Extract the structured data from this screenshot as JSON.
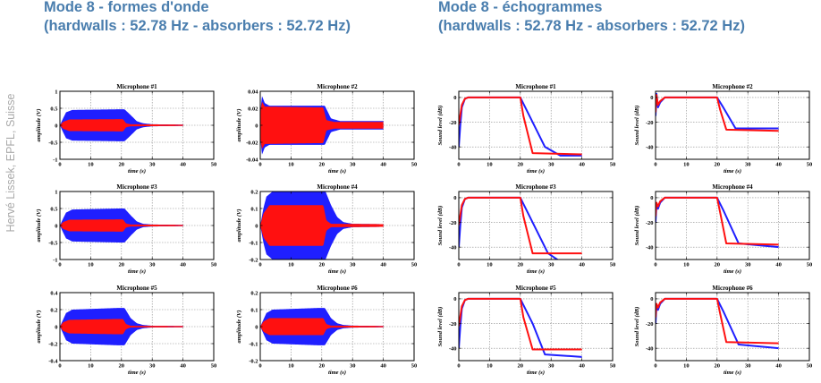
{
  "headings": {
    "left": {
      "line1": "Mode 8 - formes d'onde",
      "line2": "(hardwalls : 52.78 Hz - absorbers : 52.72 Hz)"
    },
    "right": {
      "line1": "Mode 8 - échogrammes",
      "line2": "(hardwalls : 52.78 Hz - absorbers : 52.72 Hz)"
    }
  },
  "credit": "Hervé Lissek, EPFL, Suisse",
  "colors": {
    "hardwalls": "#1f1fff",
    "absorbers": "#ff1010",
    "grid": "#8a8a8a"
  },
  "chart_data": [
    {
      "type": "area",
      "title": "Microphone #1",
      "xlabel": "time (s)",
      "ylabel": "amplitude (V)",
      "xlim": [
        0,
        50
      ],
      "ylim": [
        -1,
        1
      ],
      "xticks": [
        "0",
        "10",
        "20",
        "30",
        "40",
        "50"
      ],
      "yticks": [
        "-1",
        "-0.5",
        "0",
        "0.5",
        "1"
      ],
      "grid": true,
      "series": [
        {
          "color": "blue",
          "envelope": [
            [
              0,
              0
            ],
            [
              1,
              0.2
            ],
            [
              2,
              0.38
            ],
            [
              4,
              0.45
            ],
            [
              19,
              0.47
            ],
            [
              21,
              0.47
            ],
            [
              23,
              0.3
            ],
            [
              25,
              0.12
            ],
            [
              27,
              0.06
            ],
            [
              30,
              0.03
            ],
            [
              40,
              0.02
            ]
          ]
        },
        {
          "color": "red",
          "envelope": [
            [
              0,
              0
            ],
            [
              1,
              0.1
            ],
            [
              3,
              0.17
            ],
            [
              19,
              0.18
            ],
            [
              20.5,
              0.18
            ],
            [
              21.5,
              0.06
            ],
            [
              23,
              0.03
            ],
            [
              40,
              0.02
            ]
          ]
        }
      ]
    },
    {
      "type": "area",
      "title": "Microphone #2",
      "xlabel": "time (s)",
      "ylabel": "amplitude (V)",
      "xlim": [
        0,
        50
      ],
      "ylim": [
        -0.04,
        0.04
      ],
      "xticks": [
        "0",
        "10",
        "20",
        "30",
        "40",
        "50"
      ],
      "yticks": [
        "-0.04",
        "-0.02",
        "0",
        "0.02",
        "0.04"
      ],
      "grid": true,
      "series": [
        {
          "color": "blue",
          "envelope": [
            [
              0,
              0.012
            ],
            [
              0.5,
              0.035
            ],
            [
              1.5,
              0.026
            ],
            [
              3,
              0.023
            ],
            [
              19,
              0.023
            ],
            [
              21,
              0.023
            ],
            [
              23,
              0.008
            ],
            [
              26,
              0.005
            ],
            [
              40,
              0.005
            ]
          ]
        },
        {
          "color": "red",
          "envelope": [
            [
              0,
              0.012
            ],
            [
              0.5,
              0.028
            ],
            [
              1.5,
              0.022
            ],
            [
              19,
              0.021
            ],
            [
              20.5,
              0.021
            ],
            [
              21.5,
              0.006
            ],
            [
              24,
              0.004
            ],
            [
              40,
              0.004
            ]
          ]
        }
      ]
    },
    {
      "type": "line",
      "title": "Microphone #1",
      "xlabel": "time (s)",
      "ylabel": "Sound level (dB)",
      "xlim": [
        0,
        50
      ],
      "ylim": [
        -50,
        5
      ],
      "xticks": [
        "0",
        "10",
        "20",
        "30",
        "40",
        "50"
      ],
      "yticks": [
        "-40",
        "-20",
        "0"
      ],
      "grid": true,
      "series": [
        {
          "color": "blue",
          "x": [
            0,
            0.5,
            1,
            2,
            3,
            20,
            28,
            33,
            40
          ],
          "y": [
            -40,
            -22,
            -8,
            -1,
            0,
            0,
            -40,
            -47,
            -47
          ]
        },
        {
          "color": "red",
          "x": [
            0,
            1,
            2,
            3,
            20,
            21,
            24,
            40
          ],
          "y": [
            -22,
            -6,
            -1,
            0,
            0,
            -15,
            -45,
            -46
          ]
        }
      ]
    },
    {
      "type": "line",
      "title": "Microphone #2",
      "xlabel": "time (s)",
      "ylabel": "Sound level (dB)",
      "xlim": [
        0,
        50
      ],
      "ylim": [
        -50,
        5
      ],
      "xticks": [
        "0",
        "10",
        "20",
        "30",
        "40",
        "50"
      ],
      "yticks": [
        "-40",
        "-20",
        "0"
      ],
      "grid": true,
      "series": [
        {
          "color": "blue",
          "x": [
            0,
            0.3,
            0.8,
            1.5,
            3,
            20,
            22,
            26,
            40
          ],
          "y": [
            -15,
            3,
            -8,
            -4,
            0,
            0,
            -8,
            -25,
            -25
          ]
        },
        {
          "color": "red",
          "x": [
            0,
            0.3,
            0.8,
            1.5,
            3,
            20,
            21,
            23,
            40
          ],
          "y": [
            -12,
            2,
            -6,
            -3,
            0,
            0,
            -10,
            -26,
            -27
          ]
        }
      ]
    },
    {
      "type": "area",
      "title": "Microphone #3",
      "xlabel": "time (s)",
      "ylabel": "amplitude (V)",
      "xlim": [
        0,
        50
      ],
      "ylim": [
        -1,
        1
      ],
      "xticks": [
        "0",
        "10",
        "20",
        "30",
        "40",
        "50"
      ],
      "yticks": [
        "-1",
        "-0.5",
        "0",
        "0.5",
        "1"
      ],
      "grid": true,
      "series": [
        {
          "color": "blue",
          "envelope": [
            [
              0,
              0
            ],
            [
              1,
              0.2
            ],
            [
              2,
              0.38
            ],
            [
              4,
              0.47
            ],
            [
              19,
              0.5
            ],
            [
              21,
              0.5
            ],
            [
              23,
              0.3
            ],
            [
              25,
              0.12
            ],
            [
              27,
              0.05
            ],
            [
              30,
              0.03
            ],
            [
              40,
              0.02
            ]
          ]
        },
        {
          "color": "red",
          "envelope": [
            [
              0,
              0
            ],
            [
              1,
              0.1
            ],
            [
              3,
              0.17
            ],
            [
              19,
              0.18
            ],
            [
              20.5,
              0.18
            ],
            [
              21.5,
              0.06
            ],
            [
              23,
              0.03
            ],
            [
              40,
              0.02
            ]
          ]
        }
      ]
    },
    {
      "type": "area",
      "title": "Microphone #4",
      "xlabel": "time (s)",
      "ylabel": "amplitude (V)",
      "xlim": [
        0,
        50
      ],
      "ylim": [
        -0.2,
        0.2
      ],
      "xticks": [
        "0",
        "10",
        "20",
        "30",
        "40",
        "50"
      ],
      "yticks": [
        "-0.2",
        "-0.1",
        "0",
        "0.1",
        "0.2"
      ],
      "grid": true,
      "series": [
        {
          "color": "blue",
          "envelope": [
            [
              0,
              0
            ],
            [
              1,
              0.1
            ],
            [
              2,
              0.17
            ],
            [
              4,
              0.2
            ],
            [
              19,
              0.21
            ],
            [
              21,
              0.21
            ],
            [
              23,
              0.12
            ],
            [
              25,
              0.05
            ],
            [
              27,
              0.02
            ],
            [
              30,
              0.01
            ],
            [
              40,
              0.008
            ]
          ]
        },
        {
          "color": "red",
          "envelope": [
            [
              0,
              0
            ],
            [
              1,
              0.07
            ],
            [
              3,
              0.12
            ],
            [
              19,
              0.12
            ],
            [
              20.5,
              0.12
            ],
            [
              21.5,
              0.03
            ],
            [
              23,
              0.01
            ],
            [
              40,
              0.008
            ]
          ]
        }
      ]
    },
    {
      "type": "line",
      "title": "Microphone #3",
      "xlabel": "time (s)",
      "ylabel": "Sound level (dB)",
      "xlim": [
        0,
        50
      ],
      "ylim": [
        -50,
        5
      ],
      "xticks": [
        "0",
        "10",
        "20",
        "30",
        "40",
        "50"
      ],
      "yticks": [
        "-40",
        "-20",
        "0"
      ],
      "grid": true,
      "series": [
        {
          "color": "blue",
          "x": [
            0,
            0.5,
            1,
            2,
            3,
            20,
            29,
            35
          ],
          "y": [
            -40,
            -22,
            -8,
            -1,
            0,
            0,
            -45,
            -55
          ]
        },
        {
          "color": "red",
          "x": [
            0,
            1,
            2,
            3,
            20,
            21,
            24,
            40
          ],
          "y": [
            -22,
            -6,
            -1,
            0,
            0,
            -15,
            -45,
            -45
          ]
        }
      ]
    },
    {
      "type": "line",
      "title": "Microphone #4",
      "xlabel": "time (s)",
      "ylabel": "Sound level (dB)",
      "xlim": [
        0,
        50
      ],
      "ylim": [
        -50,
        5
      ],
      "xticks": [
        "0",
        "10",
        "20",
        "30",
        "40",
        "50"
      ],
      "yticks": [
        "-40",
        "-20",
        "0"
      ],
      "grid": true,
      "series": [
        {
          "color": "blue",
          "x": [
            0,
            0.3,
            0.8,
            1.5,
            3,
            20,
            22,
            27,
            40
          ],
          "y": [
            -20,
            -5,
            -9,
            -4,
            0,
            0,
            -10,
            -37,
            -40
          ]
        },
        {
          "color": "red",
          "x": [
            0,
            0.3,
            0.8,
            1.5,
            3,
            20,
            21,
            23,
            40
          ],
          "y": [
            -15,
            -4,
            -7,
            -3,
            0,
            0,
            -12,
            -37,
            -38
          ]
        }
      ]
    },
    {
      "type": "area",
      "title": "Microphone #5",
      "xlabel": "time (s)",
      "ylabel": "amplitude (V)",
      "xlim": [
        0,
        50
      ],
      "ylim": [
        -0.4,
        0.4
      ],
      "xticks": [
        "0",
        "10",
        "20",
        "30",
        "40",
        "50"
      ],
      "yticks": [
        "-0.4",
        "-0.2",
        "0",
        "0.2",
        "0.4"
      ],
      "grid": true,
      "series": [
        {
          "color": "blue",
          "envelope": [
            [
              0,
              0
            ],
            [
              1,
              0.08
            ],
            [
              2,
              0.16
            ],
            [
              4,
              0.2
            ],
            [
              19,
              0.22
            ],
            [
              21,
              0.22
            ],
            [
              23,
              0.1
            ],
            [
              25,
              0.04
            ],
            [
              27,
              0.02
            ],
            [
              30,
              0.01
            ],
            [
              40,
              0.008
            ]
          ]
        },
        {
          "color": "red",
          "envelope": [
            [
              0,
              0
            ],
            [
              1,
              0.05
            ],
            [
              3,
              0.08
            ],
            [
              19,
              0.09
            ],
            [
              20.5,
              0.09
            ],
            [
              21.5,
              0.03
            ],
            [
              23,
              0.01
            ],
            [
              40,
              0.008
            ]
          ]
        }
      ]
    },
    {
      "type": "area",
      "title": "Microphone #6",
      "xlabel": "time (s)",
      "ylabel": "amplitude (V)",
      "xlim": [
        0,
        50
      ],
      "ylim": [
        -0.2,
        0.2
      ],
      "xticks": [
        "0",
        "10",
        "20",
        "30",
        "40",
        "50"
      ],
      "yticks": [
        "-0.2",
        "-0.1",
        "0",
        "0.1",
        "0.2"
      ],
      "grid": true,
      "series": [
        {
          "color": "blue",
          "envelope": [
            [
              0,
              0
            ],
            [
              1,
              0.04
            ],
            [
              2,
              0.08
            ],
            [
              4,
              0.1
            ],
            [
              19,
              0.11
            ],
            [
              21,
              0.11
            ],
            [
              23,
              0.05
            ],
            [
              25,
              0.02
            ],
            [
              27,
              0.01
            ],
            [
              30,
              0.006
            ],
            [
              40,
              0.004
            ]
          ]
        },
        {
          "color": "red",
          "envelope": [
            [
              0,
              0
            ],
            [
              1,
              0.03
            ],
            [
              3,
              0.05
            ],
            [
              19,
              0.05
            ],
            [
              20.5,
              0.05
            ],
            [
              21.5,
              0.015
            ],
            [
              23,
              0.006
            ],
            [
              40,
              0.004
            ]
          ]
        }
      ]
    },
    {
      "type": "line",
      "title": "Microphone #5",
      "xlabel": "time (s)",
      "ylabel": "Sound level (dB)",
      "xlim": [
        0,
        50
      ],
      "ylim": [
        -50,
        5
      ],
      "xticks": [
        "0",
        "10",
        "20",
        "30",
        "40",
        "50"
      ],
      "yticks": [
        "-40",
        "-20",
        "0"
      ],
      "grid": true,
      "series": [
        {
          "color": "blue",
          "x": [
            0,
            0.5,
            1,
            2,
            3,
            20,
            24,
            28,
            40
          ],
          "y": [
            -40,
            -22,
            -8,
            -1,
            0,
            0,
            -20,
            -45,
            -47
          ]
        },
        {
          "color": "red",
          "x": [
            0,
            1,
            2,
            3,
            20,
            21,
            24,
            40
          ],
          "y": [
            -22,
            -6,
            -1,
            0,
            0,
            -15,
            -41,
            -41
          ]
        }
      ]
    },
    {
      "type": "line",
      "title": "Microphone #6",
      "xlabel": "time (s)",
      "ylabel": "Sound level (dB)",
      "xlim": [
        0,
        50
      ],
      "ylim": [
        -50,
        5
      ],
      "xticks": [
        "0",
        "10",
        "20",
        "30",
        "40",
        "50"
      ],
      "yticks": [
        "-40",
        "-20",
        "0"
      ],
      "grid": true,
      "series": [
        {
          "color": "blue",
          "x": [
            0,
            0.3,
            0.8,
            1.5,
            3,
            20,
            22,
            27,
            40
          ],
          "y": [
            -20,
            -5,
            -9,
            -4,
            0,
            0,
            -10,
            -37,
            -40
          ]
        },
        {
          "color": "red",
          "x": [
            0,
            0.3,
            0.8,
            1.5,
            3,
            20,
            21,
            23,
            40
          ],
          "y": [
            -15,
            -4,
            -7,
            -3,
            0,
            0,
            -12,
            -35,
            -36
          ]
        }
      ]
    }
  ]
}
